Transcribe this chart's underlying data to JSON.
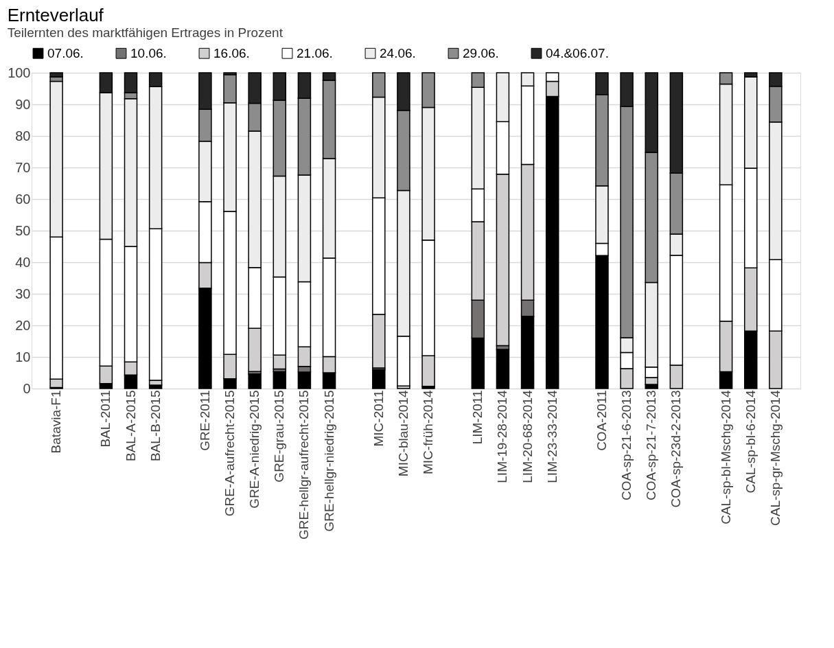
{
  "chart_data": {
    "type": "bar",
    "stacked": true,
    "title": "Ernteverlauf",
    "subtitle": "Teilernten des marktfähigen Ertrages in Prozent",
    "categories": [
      "Batavia-F1",
      null,
      "BAL-2011",
      "BAL-A-2015",
      "BAL-B-2015",
      null,
      "GRE-2011",
      "GRE-A-aufrecht-2015",
      "GRE-A-niedrig-2015",
      "GRE-grau-2015",
      "GRE-hellgr-aufrecht-2015",
      "GRE-hellgr-niedrig-2015",
      null,
      "MIC-2011",
      "MIC-blau-2014",
      "MIC-früh-2014",
      null,
      "LIM-2011",
      "LIM-19-28-2014",
      "LIM-20-68-2014",
      "LIM-23-33-2014",
      null,
      "COA-2011",
      "COA-sp-21-6-2013",
      "COA-sp-21-7-2013",
      "COA-sp-23d-2-2013",
      null,
      "CAL-sp-bl-Mschg-2014",
      "CAL-sp-bl-6-2014",
      "CAL-sp-gr-Mschg-2014"
    ],
    "series": [
      {
        "name": "07.06.",
        "color": "#000000",
        "values": [
          0.3,
          null,
          1.6,
          4.3,
          1.1,
          null,
          31.8,
          3.1,
          4.6,
          5.3,
          5.2,
          5.0,
          null,
          6.0,
          0,
          0.7,
          null,
          16.0,
          12.4,
          22.9,
          92.5,
          null,
          42.1,
          0,
          1.3,
          0,
          null,
          5.3,
          18.2,
          0
        ]
      },
      {
        "name": "10.06.",
        "color": "#767171",
        "values": [
          0,
          null,
          0,
          0,
          0,
          null,
          0,
          0,
          0.8,
          0.9,
          1.8,
          0,
          null,
          0.5,
          0,
          0,
          null,
          12.0,
          1.2,
          5.1,
          0,
          null,
          0,
          0,
          0,
          0,
          null,
          0,
          0,
          0
        ]
      },
      {
        "name": "16.06.",
        "color": "#d0cece",
        "values": [
          2.7,
          null,
          5.5,
          4.1,
          1.5,
          null,
          8.1,
          7.7,
          13.7,
          4.4,
          6.2,
          5.1,
          null,
          17.0,
          0.8,
          9.7,
          null,
          24.8,
          54.3,
          43.0,
          4.8,
          null,
          0,
          6.3,
          2.2,
          7.4,
          null,
          16.0,
          20.0,
          18.2
        ]
      },
      {
        "name": "21.06.",
        "color": "#ffffff",
        "values": [
          45.0,
          null,
          40.2,
          36.6,
          48.0,
          null,
          19.3,
          45.3,
          19.2,
          24.7,
          20.6,
          31.2,
          null,
          36.9,
          15.8,
          36.6,
          null,
          10.4,
          16.6,
          24.8,
          2.7,
          null,
          3.9,
          5.1,
          3.3,
          34.8,
          null,
          43.2,
          31.6,
          22.6
        ]
      },
      {
        "name": "24.06.",
        "color": "#ececec",
        "values": [
          49.3,
          null,
          46.4,
          46.8,
          45.0,
          null,
          19.1,
          34.4,
          43.2,
          32.0,
          33.8,
          31.5,
          null,
          31.9,
          46.1,
          42.0,
          null,
          32.2,
          15.5,
          4.2,
          0,
          null,
          18.2,
          4.7,
          26.8,
          6.7,
          null,
          31.9,
          28.9,
          43.6
        ]
      },
      {
        "name": "29.06.",
        "color": "#8c8c8c",
        "values": [
          1.4,
          null,
          0,
          1.9,
          0,
          null,
          10.1,
          8.9,
          8.8,
          24.0,
          24.3,
          24.8,
          null,
          7.7,
          25.4,
          11.0,
          null,
          4.6,
          0,
          0,
          0,
          null,
          28.9,
          73.2,
          41.2,
          19.3,
          null,
          3.6,
          0,
          11.3
        ]
      },
      {
        "name": "04.&06.07.",
        "color": "#262626",
        "values": [
          1.3,
          null,
          6.3,
          6.3,
          4.4,
          null,
          11.6,
          0.6,
          9.7,
          8.7,
          8.1,
          2.4,
          null,
          0,
          11.9,
          0,
          null,
          0,
          0,
          0,
          0,
          null,
          6.9,
          10.7,
          25.2,
          31.8,
          null,
          0,
          1.3,
          4.3
        ]
      }
    ],
    "ylim": [
      0,
      100
    ],
    "yticks": [
      0,
      10,
      20,
      30,
      40,
      50,
      60,
      70,
      80,
      90,
      100
    ],
    "grid": "y",
    "legend": "top"
  }
}
